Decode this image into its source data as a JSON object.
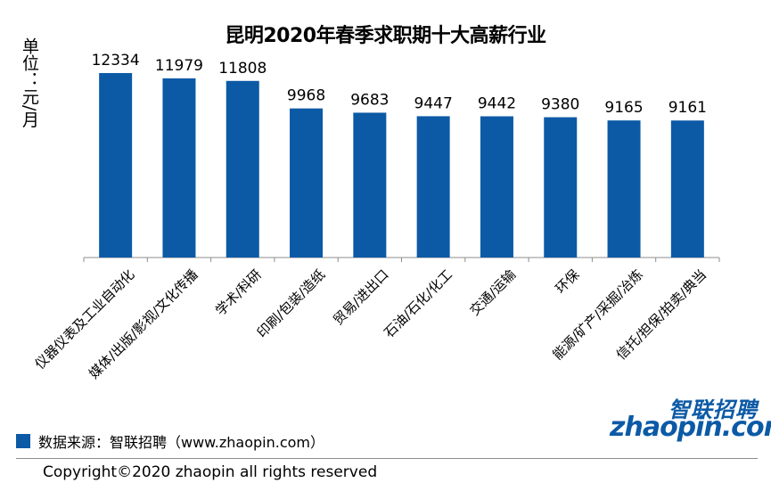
{
  "chart_data": {
    "type": "bar",
    "title": "昆明2020年春季求职期十大高薪行业",
    "ylabel": "单位：元/月",
    "xlabel": "",
    "categories": [
      "仪器仪表及工业自动化",
      "媒体/出版/影视/文化传播",
      "学术/科研",
      "印刷/包装/造纸",
      "贸易/进出口",
      "石油/石化/化工",
      "交通/运输",
      "环保",
      "能源/矿产/采掘/冶炼",
      "信托/担保/拍卖/典当"
    ],
    "values": [
      12334,
      11979,
      11808,
      9968,
      9683,
      9447,
      9442,
      9380,
      9165,
      9161
    ],
    "ylim": [
      0,
      14000
    ],
    "grid": false,
    "bar_color": "#0c5aa6",
    "legend": {
      "placement": "bottom-left",
      "label": "数据来源：智联招聘（www.zhaopin.com）"
    }
  },
  "footer": {
    "copyright": "Copyright©2020 zhaopin all rights reserved"
  },
  "logo": {
    "cn": "智联招聘",
    "en": "zhaopin.com"
  }
}
